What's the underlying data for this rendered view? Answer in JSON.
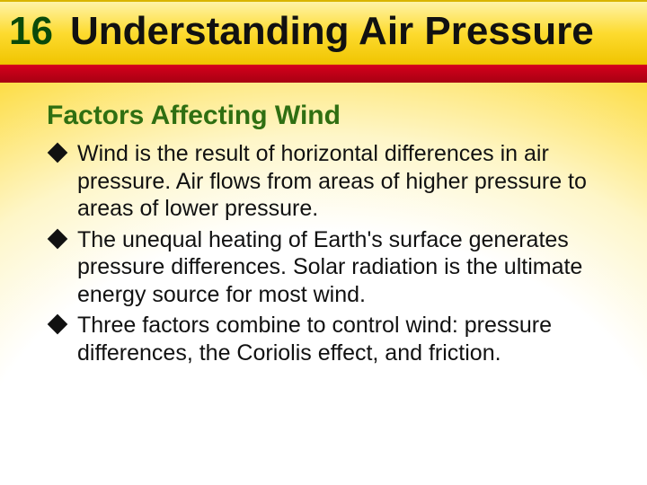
{
  "header": {
    "chapter_number": "16",
    "title": "Understanding Air Pressure",
    "gold_gradient": [
      "#fef3a8",
      "#fddb2f",
      "#f0c400"
    ],
    "red_gradient": [
      "#d6001c",
      "#a70012"
    ],
    "chapter_color": "#0a4a0a",
    "title_color": "#111111",
    "title_fontsize": 44
  },
  "section": {
    "heading": "Factors Affecting Wind",
    "heading_color": "#2f6f12",
    "heading_fontsize": 30
  },
  "bullets": [
    "Wind is the result of horizontal differences in air pressure. Air flows from areas of higher pressure to areas of lower pressure.",
    "The unequal heating of Earth's surface generates pressure differences. Solar radiation is the ultimate energy source for most wind.",
    "Three factors combine to control wind: pressure differences, the Coriolis effect, and friction."
  ],
  "bullet_style": {
    "marker": "diamond",
    "marker_color": "#111111",
    "text_color": "#111111",
    "fontsize": 25
  },
  "backdrop_gradient": [
    "#ffffff",
    "#fef6c8",
    "#fdde4a",
    "#f7c600"
  ]
}
